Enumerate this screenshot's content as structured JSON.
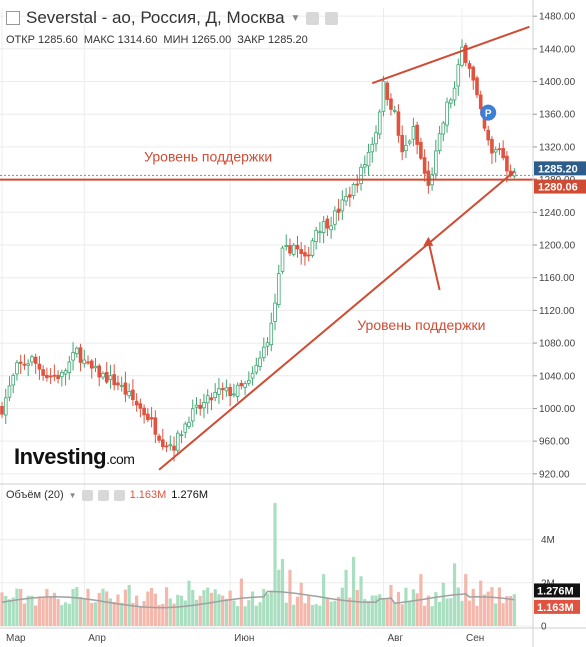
{
  "header": {
    "title": "Severstal - ао, Россия, Д, Москва",
    "open_label": "ОТКР",
    "open_value": "1285.60",
    "high_label": "МАКС",
    "high_value": "1314.60",
    "low_label": "МИН",
    "low_value": "1265.00",
    "close_label": "ЗАКР",
    "close_value": "1285.20"
  },
  "volume_header": {
    "label": "Объём (20)",
    "value1": "1.163M",
    "value2": "1.276M"
  },
  "logo": {
    "main": "Investing",
    "suffix": ".com"
  },
  "chart_data": {
    "type": "candlestick",
    "price_axis": {
      "ylim": [
        910,
        1490
      ],
      "ticks": [
        920,
        960,
        1000,
        1040,
        1080,
        1120,
        1160,
        1200,
        1240,
        1280,
        1320,
        1360,
        1400,
        1440,
        1480
      ]
    },
    "price_labels": [
      "920.00",
      "960.00",
      "1000.00",
      "1040.00",
      "1080.00",
      "1120.00",
      "1160.00",
      "1200.00",
      "1240.00",
      "1280.00",
      "1320.00",
      "1360.00",
      "1400.00",
      "1440.00",
      "1480.00"
    ],
    "last_price": {
      "value": 1285.2,
      "label": "1285.20",
      "color": "#2d5d8a"
    },
    "support_price": {
      "value": 1280.06,
      "label": "1280.06",
      "color": "#d04b33"
    },
    "x_labels": [
      {
        "label": "Мар",
        "index": 0
      },
      {
        "label": "Апр",
        "index": 22
      },
      {
        "label": "Июн",
        "index": 61
      },
      {
        "label": "Авг",
        "index": 102
      },
      {
        "label": "Сен",
        "index": 123
      }
    ],
    "candle_count": 138,
    "trend_lines": [
      {
        "name": "horizontal-support",
        "p1": [
          -2,
          1280
        ],
        "p2": [
          143,
          1280
        ]
      },
      {
        "name": "rising-support",
        "p1": [
          42,
          925
        ],
        "p2": [
          137,
          1290
        ]
      },
      {
        "name": "upper-resistance",
        "p1": [
          99,
          1398
        ],
        "p2": [
          141,
          1467
        ]
      }
    ],
    "annotations": [
      {
        "text": "Уровень поддержки",
        "index": 38,
        "price": 1302
      },
      {
        "text": "Уровень поддержки",
        "index": 95,
        "price": 1096
      }
    ],
    "arrow": {
      "from": [
        117,
        1145
      ],
      "to": [
        114,
        1210
      ]
    },
    "marker": {
      "text": "P",
      "index": 130,
      "price": 1362,
      "color": "#3b7fd9"
    },
    "anchors": [
      [
        0,
        1000
      ],
      [
        4,
        1050
      ],
      [
        8,
        1060
      ],
      [
        12,
        1040
      ],
      [
        16,
        1040
      ],
      [
        20,
        1070
      ],
      [
        23,
        1050
      ],
      [
        27,
        1040
      ],
      [
        31,
        1030
      ],
      [
        35,
        1010
      ],
      [
        39,
        990
      ],
      [
        43,
        960
      ],
      [
        46,
        955
      ],
      [
        50,
        990
      ],
      [
        54,
        1005
      ],
      [
        58,
        1020
      ],
      [
        62,
        1020
      ],
      [
        66,
        1030
      ],
      [
        69,
        1060
      ],
      [
        72,
        1100
      ],
      [
        75,
        1190
      ],
      [
        78,
        1200
      ],
      [
        81,
        1180
      ],
      [
        84,
        1220
      ],
      [
        88,
        1230
      ],
      [
        91,
        1250
      ],
      [
        94,
        1270
      ],
      [
        97,
        1300
      ],
      [
        100,
        1340
      ],
      [
        102,
        1395
      ],
      [
        105,
        1360
      ],
      [
        107,
        1310
      ],
      [
        110,
        1340
      ],
      [
        112,
        1305
      ],
      [
        114,
        1270
      ],
      [
        117,
        1330
      ],
      [
        119,
        1370
      ],
      [
        121,
        1390
      ],
      [
        123,
        1440
      ],
      [
        125,
        1420
      ],
      [
        127,
        1380
      ],
      [
        129,
        1340
      ],
      [
        131,
        1310
      ],
      [
        133,
        1320
      ],
      [
        135,
        1295
      ],
      [
        137,
        1285
      ]
    ],
    "volume_axis": {
      "ylim": [
        0,
        5
      ],
      "ticks": [
        0,
        2,
        4
      ],
      "tick_labels": [
        "0",
        "2M",
        "4M"
      ]
    },
    "volume_labels": [
      {
        "label": "1.276M",
        "value": 1.276,
        "color": "#111111"
      },
      {
        "label": "1.163M",
        "value": 1.163,
        "color": "#e0533f"
      }
    ],
    "volume_spikes": [
      [
        20,
        1.8
      ],
      [
        28,
        1.6
      ],
      [
        34,
        1.9
      ],
      [
        41,
        1.5
      ],
      [
        50,
        2.1
      ],
      [
        53,
        1.4
      ],
      [
        57,
        1.7
      ],
      [
        64,
        2.2
      ],
      [
        73,
        5.7
      ],
      [
        74,
        2.6
      ],
      [
        75,
        3.1
      ],
      [
        77,
        2.6
      ],
      [
        80,
        2.0
      ],
      [
        86,
        2.4
      ],
      [
        92,
        2.6
      ],
      [
        94,
        3.2
      ],
      [
        96,
        2.3
      ],
      [
        104,
        1.9
      ],
      [
        110,
        1.7
      ],
      [
        112,
        2.4
      ],
      [
        118,
        2.0
      ],
      [
        121,
        2.9
      ],
      [
        124,
        2.4
      ],
      [
        128,
        2.1
      ]
    ]
  },
  "colors": {
    "up": "#3fa671",
    "down": "#e0533f",
    "up_vol": "#a9dfc0",
    "down_vol": "#f4b7ab",
    "trend": "#d04b33",
    "grid": "#ececec",
    "ma": "#a0a0a0"
  }
}
